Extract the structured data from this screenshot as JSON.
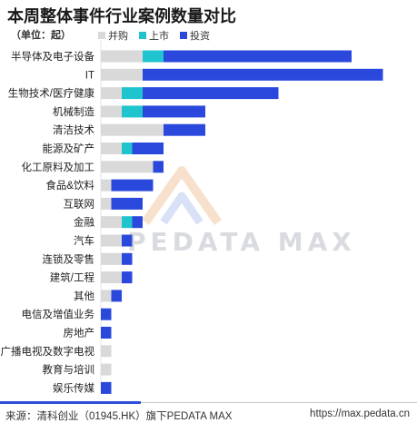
{
  "title": "本周整体事件行业案例数量对比",
  "unit_label": "（单位：起）",
  "colors": {
    "ma": "#d9d9d9",
    "ipo": "#20c4cf",
    "invest": "#2a49dc"
  },
  "footer": {
    "source": "来源：清科创业（01945.HK）旗下PEDATA MAX",
    "url": "https://max.pedata.cn"
  },
  "watermark": {
    "text": "PEDATA MAX"
  },
  "chart_data": {
    "type": "bar",
    "orientation": "horizontal",
    "stacked": true,
    "categories": [
      "半导体及电子设备",
      "IT",
      "生物技术/医疗健康",
      "机械制造",
      "清洁技术",
      "能源及矿产",
      "化工原料及加工",
      "食品&饮料",
      "互联网",
      "金融",
      "汽车",
      "连锁及零售",
      "建筑/工程",
      "其他",
      "电信及增值业务",
      "房地产",
      "广播电视及数字电视",
      "教育与培训",
      "娱乐传媒"
    ],
    "series": [
      {
        "name": "并购",
        "values": [
          4,
          4,
          2,
          2,
          6,
          2,
          5,
          1,
          1,
          2,
          2,
          2,
          2,
          1,
          0,
          0,
          1,
          1,
          0
        ]
      },
      {
        "name": "上市",
        "values": [
          2,
          0,
          2,
          2,
          0,
          1,
          0,
          0,
          0,
          1,
          0,
          0,
          0,
          0,
          0,
          0,
          0,
          0,
          0
        ]
      },
      {
        "name": "投资",
        "values": [
          18,
          23,
          13,
          6,
          4,
          3,
          1,
          4,
          3,
          1,
          1,
          1,
          1,
          1,
          1,
          1,
          0,
          0,
          1
        ]
      }
    ],
    "legend_position": "top",
    "grid": false
  }
}
